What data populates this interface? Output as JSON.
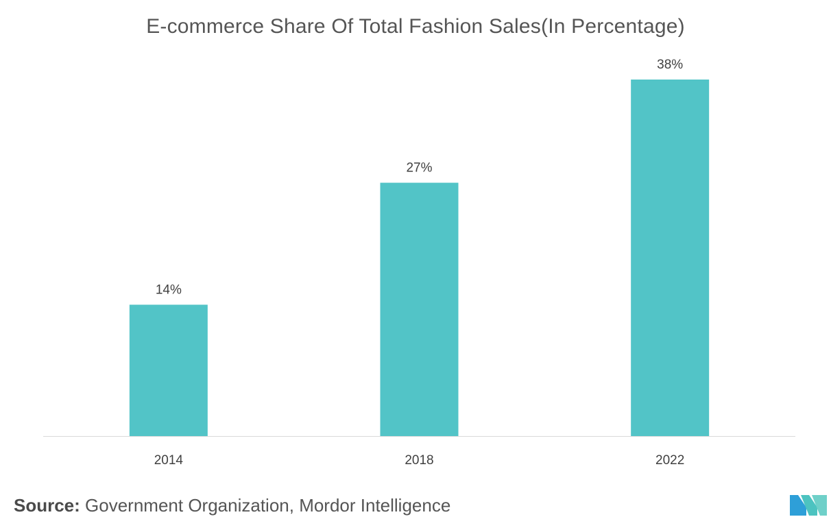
{
  "chart_data": {
    "type": "bar",
    "title": "E-commerce Share Of Total Fashion Sales(In Percentage)",
    "categories": [
      "2014",
      "2018",
      "2022"
    ],
    "values": [
      14,
      27,
      38
    ],
    "value_labels": [
      "14%",
      "27%",
      "38%"
    ],
    "unit": "%",
    "xlabel": "",
    "ylabel": "",
    "ylim": [
      0,
      38
    ],
    "grid": false,
    "legend": "none",
    "bar_color": "#52C4C7"
  },
  "source": {
    "label": "Source:",
    "text": " Government Organization, Mordor Intelligence"
  },
  "logo": {
    "icon": "mordor-intelligence-logo-icon",
    "colors": [
      "#2E9FD8",
      "#4CC3C0",
      "#6FD0C9"
    ]
  }
}
